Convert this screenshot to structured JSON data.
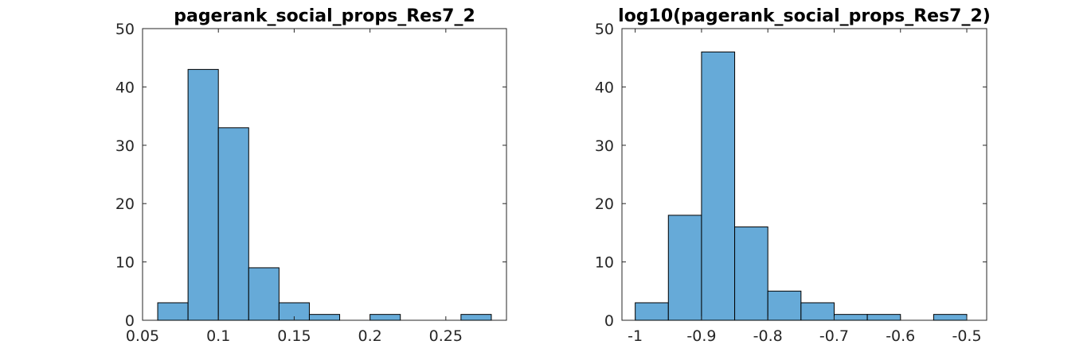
{
  "colors": {
    "bar_fill": "#66aad8",
    "bar_edge": "#000000",
    "axis": "#262626"
  },
  "chart_data": [
    {
      "type": "bar",
      "title": "pagerank_social_props_Res7_2",
      "xlabel": "",
      "ylabel": "",
      "xlim": [
        0.05,
        0.29
      ],
      "ylim": [
        0,
        50
      ],
      "xticks": [
        0.05,
        0.1,
        0.15,
        0.2,
        0.25
      ],
      "xtick_labels": [
        "0.05",
        "0.1",
        "0.15",
        "0.2",
        "0.25"
      ],
      "yticks": [
        0,
        10,
        20,
        30,
        40,
        50
      ],
      "ytick_labels": [
        "0",
        "10",
        "20",
        "30",
        "40",
        "50"
      ],
      "bin_edges": [
        0.06,
        0.08,
        0.1,
        0.12,
        0.14,
        0.16,
        0.18,
        0.2,
        0.22,
        0.24,
        0.26,
        0.28
      ],
      "counts": [
        3,
        43,
        33,
        9,
        3,
        1,
        0,
        1,
        0,
        0,
        1
      ],
      "grid": false,
      "legend": "none"
    },
    {
      "type": "bar",
      "title": "log10(pagerank_social_props_Res7_2)",
      "xlabel": "",
      "ylabel": "",
      "xlim": [
        -1.02,
        -0.47
      ],
      "ylim": [
        0,
        50
      ],
      "xticks": [
        -1,
        -0.9,
        -0.8,
        -0.7,
        -0.6,
        -0.5
      ],
      "xtick_labels": [
        "-1",
        "-0.9",
        "-0.8",
        "-0.7",
        "-0.6",
        "-0.5"
      ],
      "yticks": [
        0,
        10,
        20,
        30,
        40,
        50
      ],
      "ytick_labels": [
        "0",
        "10",
        "20",
        "30",
        "40",
        "50"
      ],
      "bin_edges": [
        -1.0,
        -0.95,
        -0.9,
        -0.85,
        -0.8,
        -0.75,
        -0.7,
        -0.65,
        -0.6,
        -0.55,
        -0.5
      ],
      "counts": [
        3,
        18,
        46,
        16,
        5,
        3,
        1,
        1,
        0,
        1
      ],
      "grid": false,
      "legend": "none"
    }
  ]
}
